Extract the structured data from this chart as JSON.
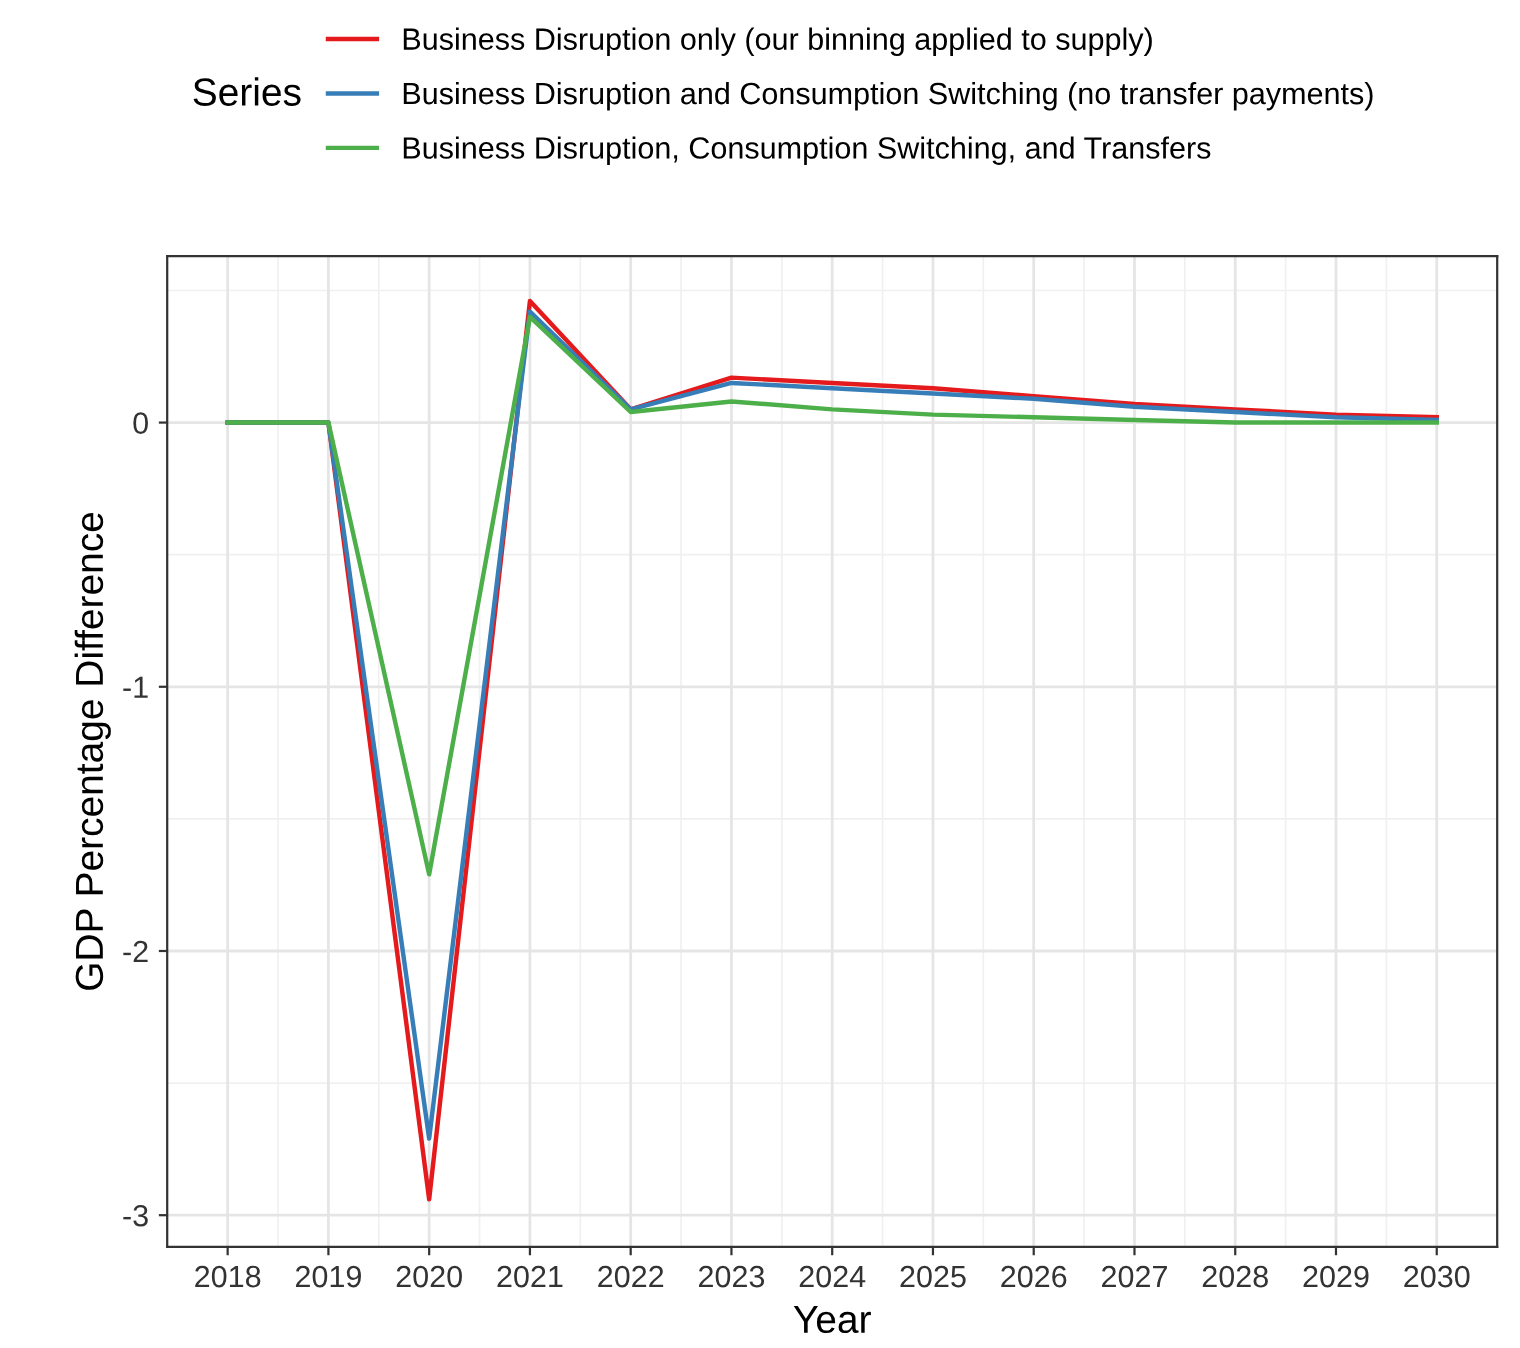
{
  "chart_data": {
    "type": "line",
    "xlabel": "Year",
    "ylabel": "GDP Percentage Difference",
    "legend_title": "Series",
    "x": [
      2018,
      2019,
      2020,
      2021,
      2022,
      2023,
      2024,
      2025,
      2026,
      2027,
      2028,
      2029,
      2030
    ],
    "series": [
      {
        "name": "Business Disruption only (our binning applied to supply)",
        "color": "#e41a1c",
        "values": [
          0,
          0,
          -2.94,
          0.46,
          0.05,
          0.17,
          0.15,
          0.13,
          0.1,
          0.07,
          0.05,
          0.03,
          0.02
        ]
      },
      {
        "name": "Business Disruption and Consumption Switching (no transfer payments)",
        "color": "#377eb8",
        "values": [
          0,
          0,
          -2.71,
          0.42,
          0.05,
          0.15,
          0.13,
          0.11,
          0.09,
          0.06,
          0.04,
          0.02,
          0.01
        ]
      },
      {
        "name": "Business Disruption, Consumption Switching, and Transfers",
        "color": "#4daf4a",
        "values": [
          0,
          0,
          -1.71,
          0.4,
          0.04,
          0.08,
          0.05,
          0.03,
          0.02,
          0.01,
          0,
          0,
          0
        ]
      }
    ],
    "xlim": [
      2017.4,
      2030.6
    ],
    "ylim": [
      -3.12,
      0.63
    ],
    "xticks": [
      2018,
      2019,
      2020,
      2021,
      2022,
      2023,
      2024,
      2025,
      2026,
      2027,
      2028,
      2029,
      2030
    ],
    "yticks": [
      {
        "value": -3,
        "label": "-3"
      },
      {
        "value": -2,
        "label": "-2"
      },
      {
        "value": -1,
        "label": "-1"
      },
      0
    ],
    "grid": true,
    "legend": "top",
    "marker": "none",
    "line_style": "solid"
  }
}
